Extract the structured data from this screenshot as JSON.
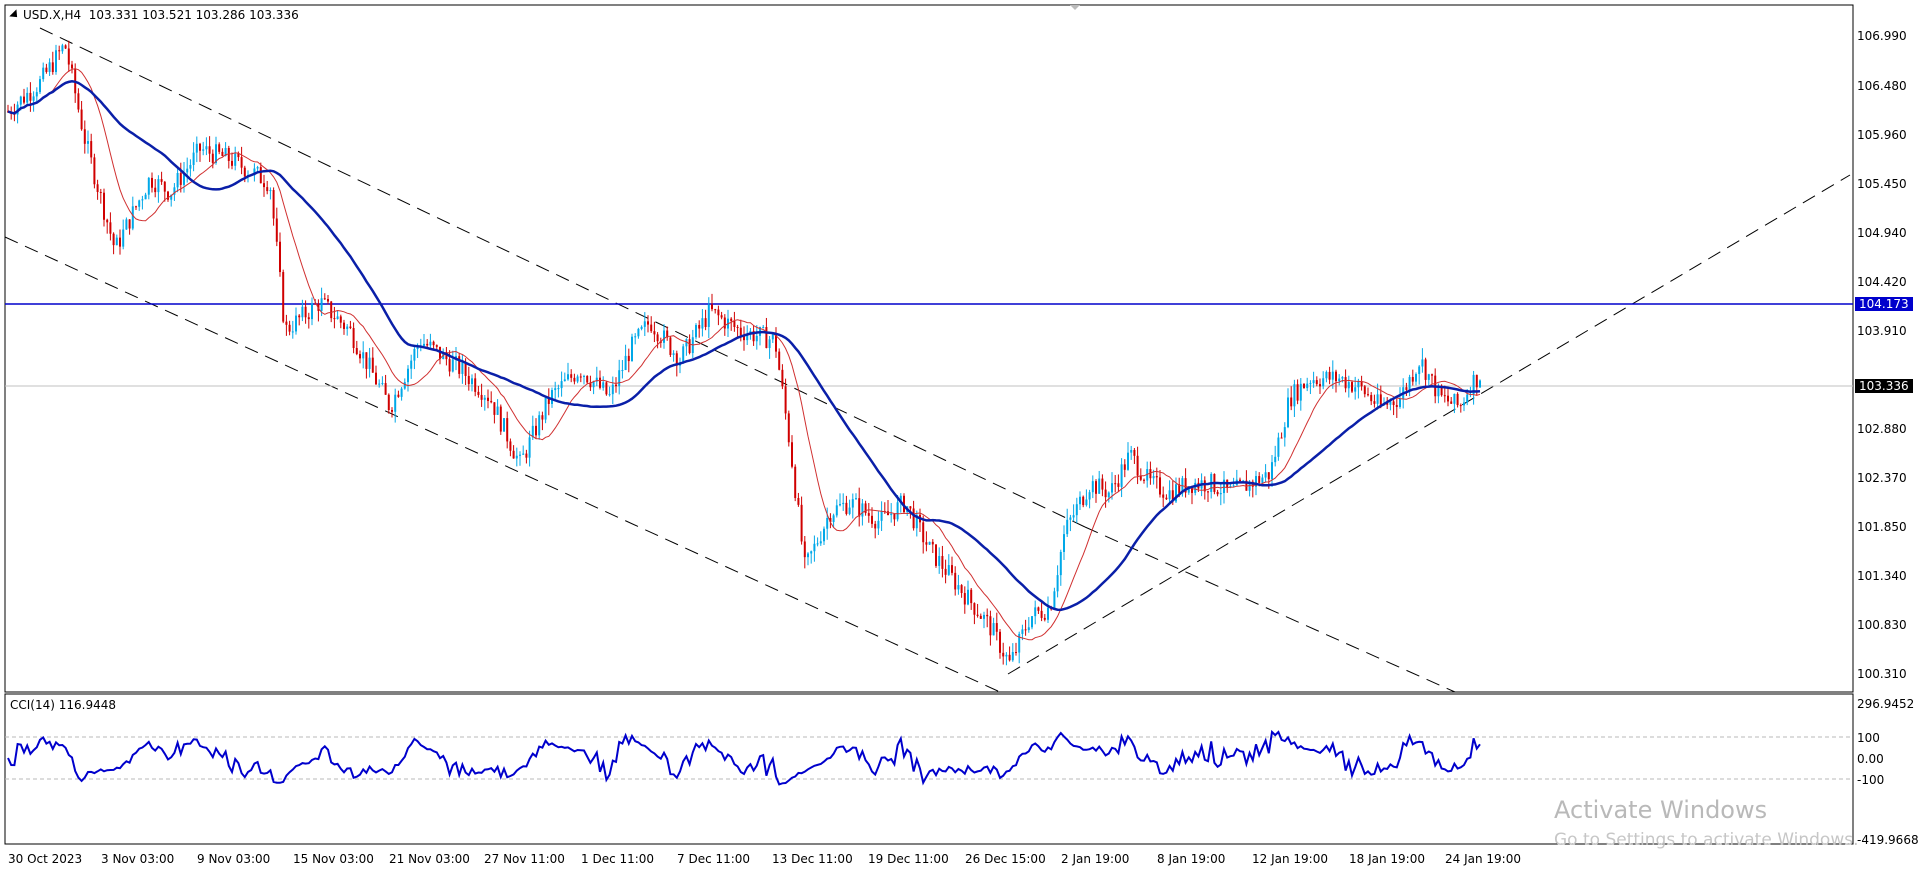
{
  "window": {
    "title": "USD.X,H4  103.331 103.521 103.286 103.336"
  },
  "main_chart": {
    "y_axis_labels": [
      "106.990",
      "106.480",
      "105.960",
      "105.450",
      "104.940",
      "104.420",
      "103.910",
      "102.880",
      "102.370",
      "101.850",
      "101.340",
      "100.830",
      "100.310"
    ],
    "horizontal_line_price": "104.173",
    "current_price": "103.336"
  },
  "cci_pane": {
    "title": "CCI(14) 116.9448",
    "y_axis_labels": [
      "296.9452",
      "100",
      "0.00",
      "-100",
      "-419.9668"
    ]
  },
  "x_axis_labels": [
    "30 Oct 2023",
    "3 Nov 03:00",
    "9 Nov 03:00",
    "15 Nov 03:00",
    "21 Nov 03:00",
    "27 Nov 11:00",
    "1 Dec 11:00",
    "7 Dec 11:00",
    "13 Dec 11:00",
    "19 Dec 11:00",
    "26 Dec 15:00",
    "2 Jan 19:00",
    "8 Jan 19:00",
    "12 Jan 19:00",
    "18 Jan 19:00",
    "24 Jan 19:00"
  ],
  "watermark": {
    "line1": "Activate Windows",
    "line2": "Go to Settings to activate Windows."
  },
  "colors": {
    "bull": "#00a8e8",
    "bear": "#d00000",
    "ma_slow": "#0a1fa8",
    "ma_fast": "#d03030",
    "cci": "#0000cc",
    "hline": "#0000cc",
    "badge_current": "#000000",
    "badge_line": "#0000cc"
  },
  "chart_data": {
    "type": "candlestick",
    "symbol": "USD.X",
    "timeframe": "H4",
    "ohlc_header": {
      "open": 103.331,
      "high": 103.521,
      "low": 103.286,
      "close": 103.336
    },
    "y_range": [
      100.31,
      106.99
    ],
    "approx_close_path": [
      [
        "30 Oct 2023",
        106.2
      ],
      [
        "3 Nov 03:00",
        104.8
      ],
      [
        "9 Nov 03:00",
        105.7
      ],
      [
        "15 Nov 03:00",
        104.0
      ],
      [
        "21 Nov 03:00",
        103.7
      ],
      [
        "27 Nov 11:00",
        102.6
      ],
      [
        "1 Dec 11:00",
        103.4
      ],
      [
        "7 Dec 11:00",
        104.0
      ],
      [
        "13 Dec 11:00",
        101.4
      ],
      [
        "19 Dec 11:00",
        101.9
      ],
      [
        "26 Dec 15:00",
        100.4
      ],
      [
        "2 Jan 19:00",
        102.0
      ],
      [
        "8 Jan 19:00",
        102.1
      ],
      [
        "12 Jan 19:00",
        103.3
      ],
      [
        "18 Jan 19:00",
        103.2
      ],
      [
        "24 Jan 19:00",
        103.34
      ]
    ],
    "indicators": [
      "moving average (slow, blue)",
      "moving average (fast, red)",
      "CCI(14)"
    ]
  }
}
